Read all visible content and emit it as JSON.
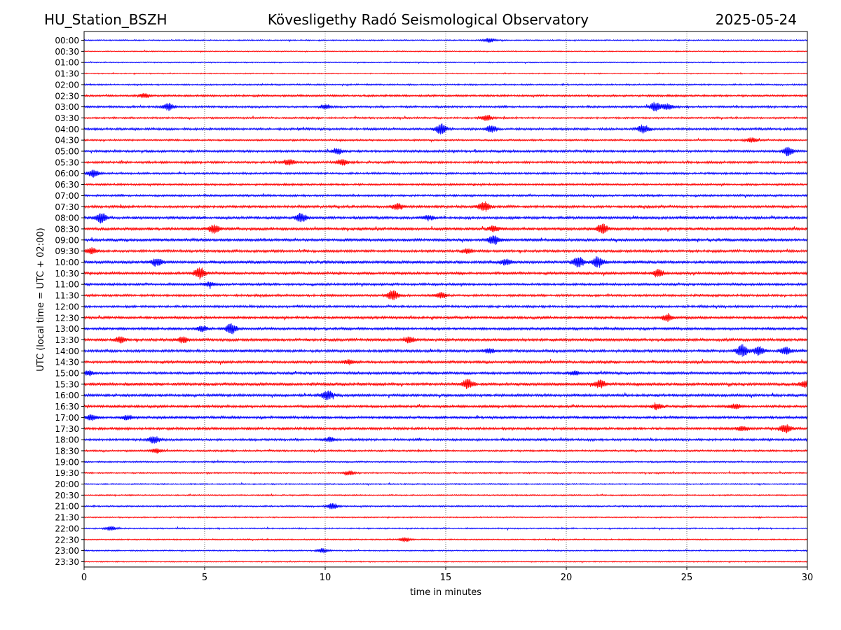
{
  "header": {
    "station": "HU_Station_BSZH",
    "observatory": "Kövesligethy Radó Seismological Observatory",
    "date": "2025-05-24"
  },
  "chart_data": {
    "type": "line",
    "title": "Kövesligethy Radó Seismological Observatory",
    "xlabel": "time in minutes",
    "ylabel": "UTC (local time = UTC + 02:00)",
    "xlim": [
      0,
      30
    ],
    "xticks": [
      0,
      5,
      10,
      15,
      20,
      25,
      30
    ],
    "grid_x": [
      5,
      10,
      15,
      20,
      25
    ],
    "row_labels": [
      "00:00",
      "00:30",
      "01:00",
      "01:30",
      "02:00",
      "02:30",
      "03:00",
      "03:30",
      "04:00",
      "04:30",
      "05:00",
      "05:30",
      "06:00",
      "06:30",
      "07:00",
      "07:30",
      "08:00",
      "08:30",
      "09:00",
      "09:30",
      "10:00",
      "10:30",
      "11:00",
      "11:30",
      "12:00",
      "12:30",
      "13:00",
      "13:30",
      "14:00",
      "14:30",
      "15:00",
      "15:30",
      "16:00",
      "16:30",
      "17:00",
      "17:30",
      "18:00",
      "18:30",
      "19:00",
      "19:30",
      "20:00",
      "20:30",
      "21:00",
      "21:30",
      "22:00",
      "22:30",
      "23:00",
      "23:30"
    ],
    "trace_colors": [
      "#0000ff",
      "#ff0000"
    ],
    "noise_levels": [
      1.0,
      0.8,
      0.8,
      0.8,
      1.2,
      1.6,
      1.6,
      1.4,
      1.8,
      1.4,
      1.8,
      1.8,
      1.6,
      1.6,
      1.6,
      2.0,
      2.2,
      2.2,
      2.2,
      2.0,
      2.4,
      2.0,
      1.8,
      1.8,
      1.8,
      2.0,
      2.0,
      2.2,
      2.2,
      2.0,
      2.0,
      2.4,
      2.2,
      2.0,
      2.0,
      2.0,
      1.8,
      1.4,
      1.2,
      1.2,
      1.0,
      1.0,
      1.2,
      1.0,
      1.0,
      1.0,
      1.0,
      0.8
    ],
    "events": [
      {
        "row": 0,
        "t": 16.8,
        "amp": 3
      },
      {
        "row": 5,
        "t": 2.5,
        "amp": 3
      },
      {
        "row": 6,
        "t": 3.5,
        "amp": 5
      },
      {
        "row": 6,
        "t": 10.0,
        "amp": 3
      },
      {
        "row": 6,
        "t": 23.7,
        "amp": 6
      },
      {
        "row": 6,
        "t": 24.2,
        "amp": 4
      },
      {
        "row": 7,
        "t": 16.7,
        "amp": 4
      },
      {
        "row": 8,
        "t": 14.8,
        "amp": 7
      },
      {
        "row": 8,
        "t": 16.9,
        "amp": 5
      },
      {
        "row": 8,
        "t": 23.2,
        "amp": 6
      },
      {
        "row": 9,
        "t": 27.7,
        "amp": 3
      },
      {
        "row": 10,
        "t": 10.5,
        "amp": 4
      },
      {
        "row": 10,
        "t": 29.2,
        "amp": 6
      },
      {
        "row": 11,
        "t": 8.5,
        "amp": 4
      },
      {
        "row": 11,
        "t": 10.7,
        "amp": 4
      },
      {
        "row": 12,
        "t": 0.4,
        "amp": 5
      },
      {
        "row": 15,
        "t": 13.0,
        "amp": 4
      },
      {
        "row": 15,
        "t": 16.6,
        "amp": 7
      },
      {
        "row": 16,
        "t": 0.7,
        "amp": 7
      },
      {
        "row": 16,
        "t": 9.0,
        "amp": 6
      },
      {
        "row": 16,
        "t": 14.3,
        "amp": 3
      },
      {
        "row": 17,
        "t": 5.4,
        "amp": 6
      },
      {
        "row": 17,
        "t": 17.0,
        "amp": 4
      },
      {
        "row": 17,
        "t": 21.5,
        "amp": 7
      },
      {
        "row": 18,
        "t": 17.0,
        "amp": 6
      },
      {
        "row": 19,
        "t": 0.3,
        "amp": 4
      },
      {
        "row": 19,
        "t": 15.9,
        "amp": 3
      },
      {
        "row": 20,
        "t": 3.0,
        "amp": 5
      },
      {
        "row": 20,
        "t": 17.5,
        "amp": 4
      },
      {
        "row": 20,
        "t": 20.5,
        "amp": 7
      },
      {
        "row": 20,
        "t": 21.3,
        "amp": 7
      },
      {
        "row": 21,
        "t": 4.8,
        "amp": 8
      },
      {
        "row": 21,
        "t": 23.8,
        "amp": 5
      },
      {
        "row": 22,
        "t": 5.2,
        "amp": 3
      },
      {
        "row": 23,
        "t": 12.8,
        "amp": 7
      },
      {
        "row": 23,
        "t": 14.8,
        "amp": 4
      },
      {
        "row": 25,
        "t": 24.2,
        "amp": 5
      },
      {
        "row": 26,
        "t": 4.9,
        "amp": 4
      },
      {
        "row": 26,
        "t": 6.1,
        "amp": 7
      },
      {
        "row": 27,
        "t": 1.5,
        "amp": 4
      },
      {
        "row": 27,
        "t": 4.1,
        "amp": 4
      },
      {
        "row": 27,
        "t": 13.5,
        "amp": 4
      },
      {
        "row": 28,
        "t": 16.8,
        "amp": 3
      },
      {
        "row": 28,
        "t": 27.3,
        "amp": 8
      },
      {
        "row": 28,
        "t": 28.0,
        "amp": 6
      },
      {
        "row": 28,
        "t": 29.1,
        "amp": 5
      },
      {
        "row": 29,
        "t": 11.0,
        "amp": 3
      },
      {
        "row": 30,
        "t": 0.2,
        "amp": 3
      },
      {
        "row": 30,
        "t": 20.3,
        "amp": 3
      },
      {
        "row": 31,
        "t": 15.9,
        "amp": 6
      },
      {
        "row": 31,
        "t": 21.4,
        "amp": 5
      },
      {
        "row": 31,
        "t": 29.9,
        "amp": 4
      },
      {
        "row": 32,
        "t": 10.1,
        "amp": 6
      },
      {
        "row": 33,
        "t": 23.8,
        "amp": 4
      },
      {
        "row": 33,
        "t": 27.0,
        "amp": 3
      },
      {
        "row": 34,
        "t": 0.3,
        "amp": 4
      },
      {
        "row": 34,
        "t": 1.8,
        "amp": 3
      },
      {
        "row": 35,
        "t": 29.1,
        "amp": 6
      },
      {
        "row": 35,
        "t": 27.3,
        "amp": 3
      },
      {
        "row": 36,
        "t": 2.9,
        "amp": 5
      },
      {
        "row": 36,
        "t": 10.2,
        "amp": 3
      },
      {
        "row": 37,
        "t": 3.0,
        "amp": 3
      },
      {
        "row": 39,
        "t": 11.0,
        "amp": 3
      },
      {
        "row": 42,
        "t": 10.3,
        "amp": 4
      },
      {
        "row": 44,
        "t": 1.1,
        "amp": 3
      },
      {
        "row": 45,
        "t": 13.3,
        "amp": 3
      },
      {
        "row": 46,
        "t": 9.9,
        "amp": 3
      }
    ]
  }
}
